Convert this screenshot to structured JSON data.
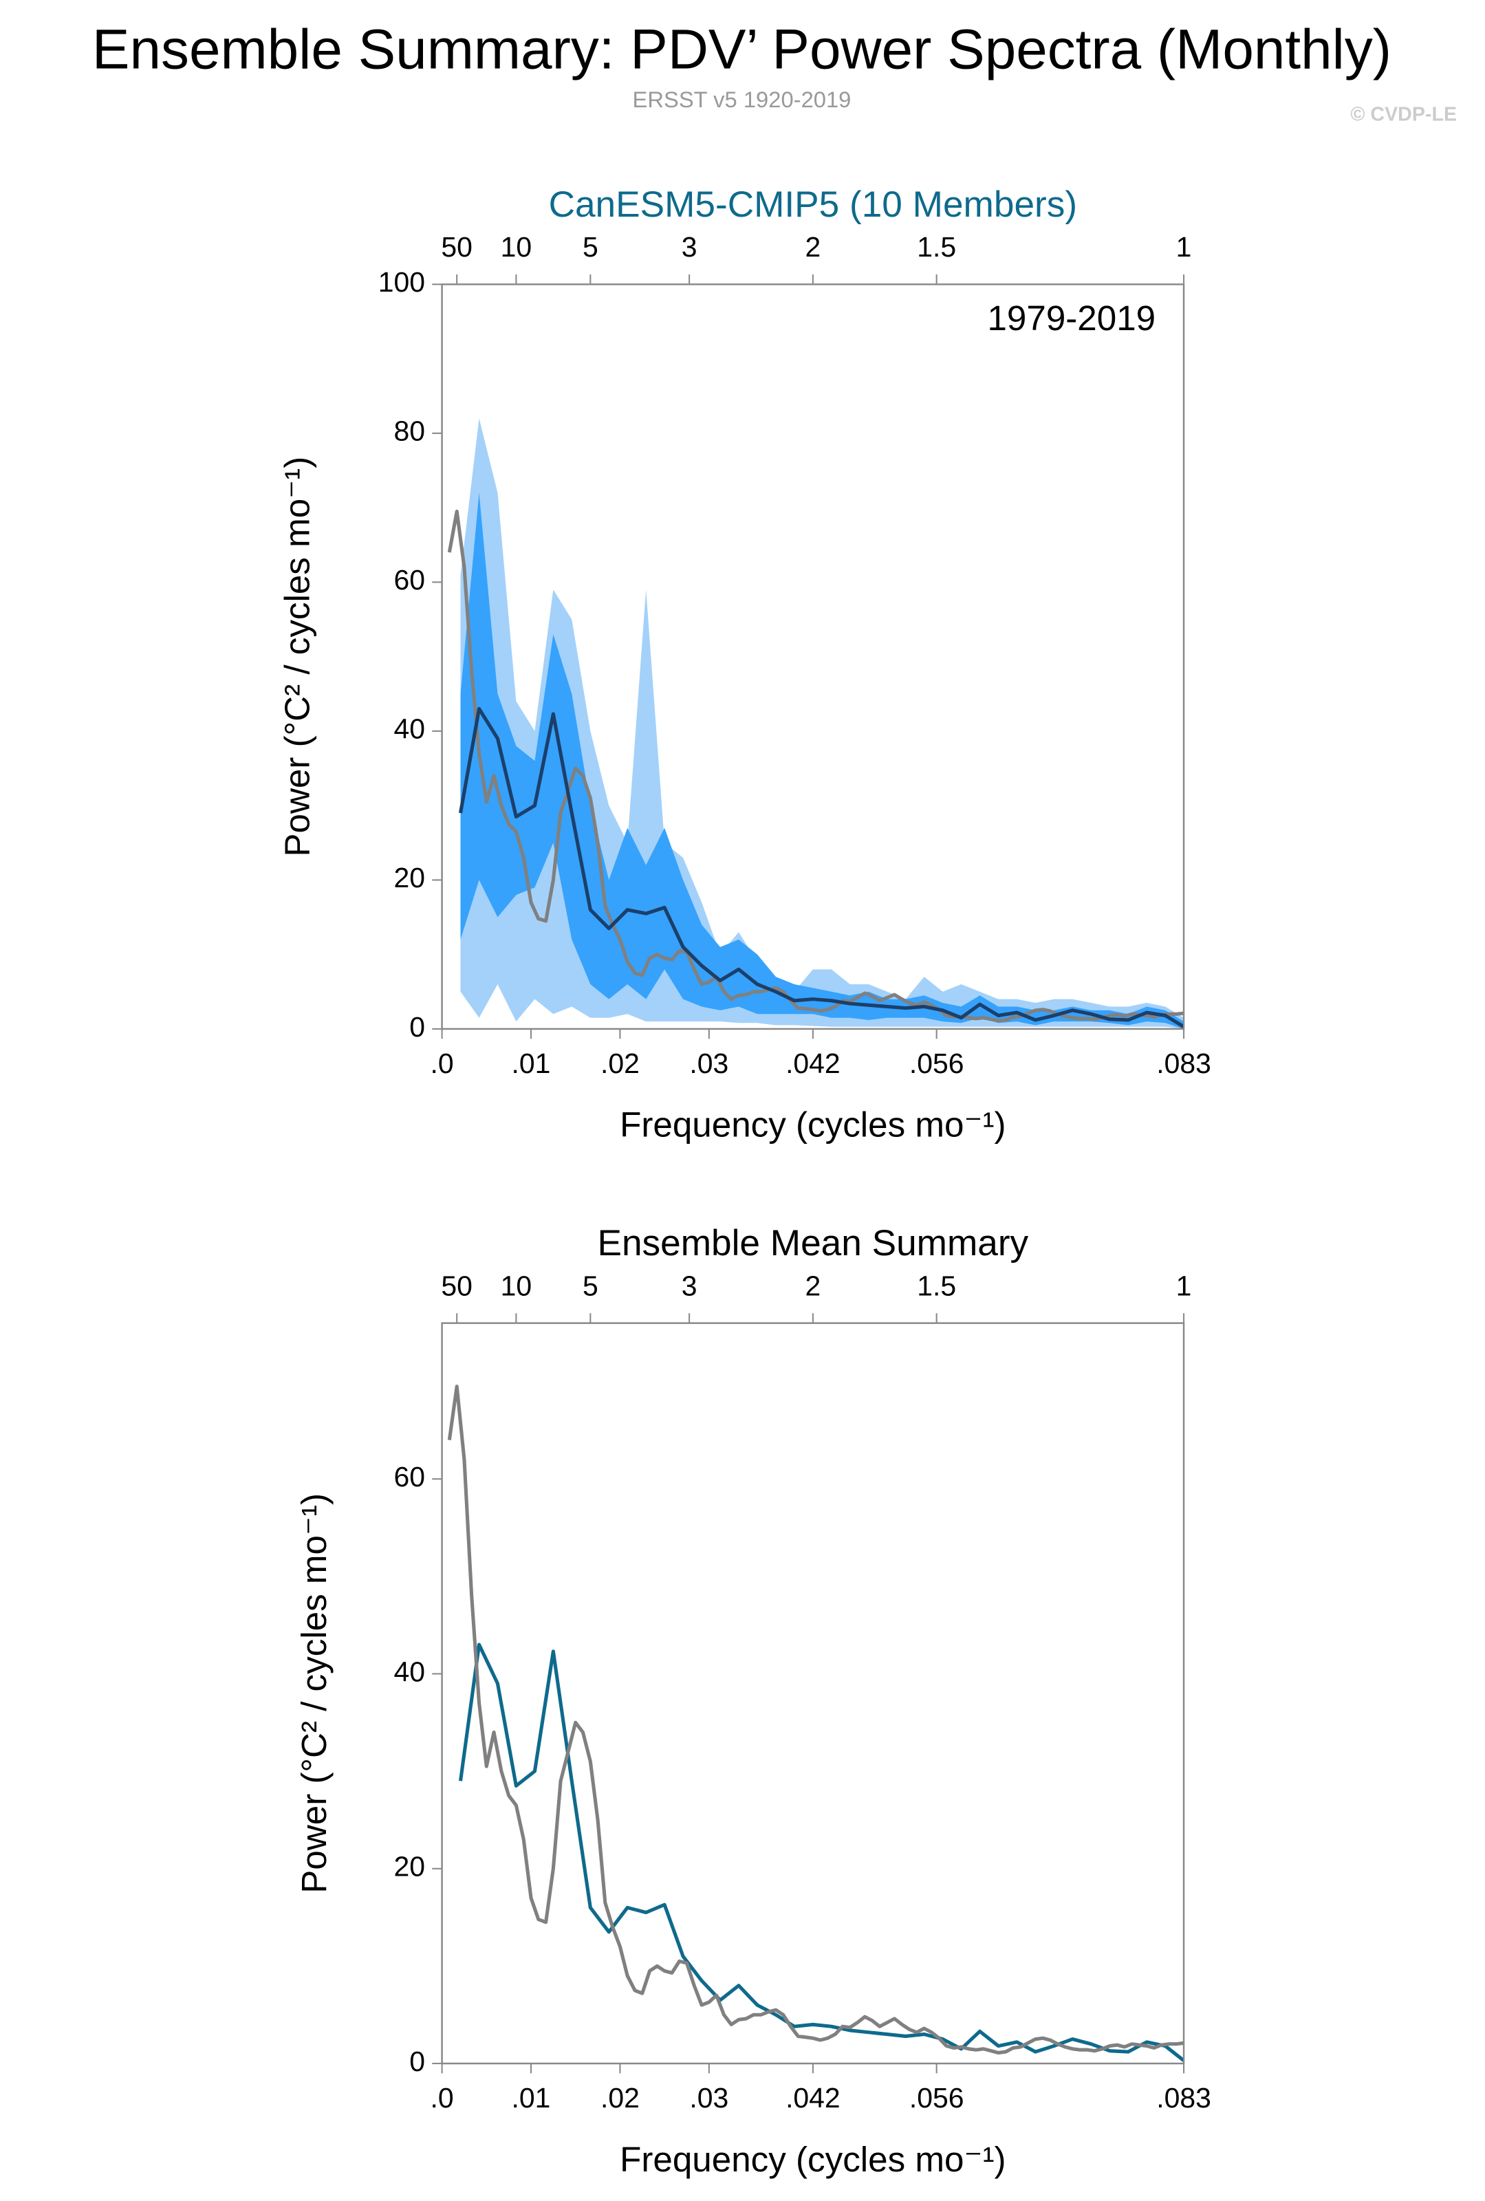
{
  "header": {
    "title": "Ensemble Summary: PDV’ Power Spectra (Monthly)",
    "subtitle": "ERSST v5 1920-2019",
    "credit": "© CVDP-LE"
  },
  "chart_data": [
    {
      "type": "line",
      "title": "CanESM5-CMIP5 (10 Members)",
      "title_color": "#0e6a8c",
      "annotation": "1979-2019",
      "xlabel": "Frequency (cycles mo⁻¹)",
      "ylabel": "Power (°C² / cycles mo⁻¹)",
      "xlim": [
        0,
        0.08333
      ],
      "ylim": [
        0,
        100
      ],
      "xticks": [
        {
          "value": 0,
          "label": ".0"
        },
        {
          "value": 0.01,
          "label": ".01"
        },
        {
          "value": 0.02,
          "label": ".02"
        },
        {
          "value": 0.03,
          "label": ".03"
        },
        {
          "value": 0.04167,
          "label": ".042"
        },
        {
          "value": 0.05556,
          "label": ".056"
        },
        {
          "value": 0.08333,
          "label": ".083"
        }
      ],
      "x2ticks": [
        {
          "value": 0.00167,
          "label": "50"
        },
        {
          "value": 0.00833,
          "label": "10"
        },
        {
          "value": 0.01667,
          "label": "5"
        },
        {
          "value": 0.02778,
          "label": "3"
        },
        {
          "value": 0.04167,
          "label": "2"
        },
        {
          "value": 0.05556,
          "label": "1.5"
        },
        {
          "value": 0.08333,
          "label": "1"
        }
      ],
      "yticks": [
        0,
        20,
        40,
        60,
        80,
        100
      ],
      "bands": [
        {
          "color": "#a3d1fa",
          "x": [
            0.00208,
            0.00417,
            0.00625,
            0.00833,
            0.01042,
            0.0125,
            0.01458,
            0.01667,
            0.01875,
            0.02083,
            0.02292,
            0.025,
            0.02708,
            0.02917,
            0.03125,
            0.03333,
            0.03542,
            0.0375,
            0.03958,
            0.04167,
            0.04375,
            0.04583,
            0.04792,
            0.05,
            0.05208,
            0.05417,
            0.05625,
            0.05833,
            0.06042,
            0.0625,
            0.06458,
            0.06667,
            0.06875,
            0.07083,
            0.07292,
            0.075,
            0.07708,
            0.07917,
            0.08125,
            0.08333
          ],
          "lower": [
            5,
            1.5,
            6,
            1,
            4,
            2,
            3,
            1.5,
            1.5,
            2,
            1,
            1,
            1,
            1,
            1,
            0.8,
            0.8,
            0.5,
            0.5,
            0.4,
            0.3,
            0.3,
            0.3,
            0.3,
            0.3,
            0.3,
            0.3,
            0.3,
            0.3,
            0.3,
            0.3,
            0.3,
            0.3,
            0.3,
            0.3,
            0.3,
            0.3,
            0.3,
            0.3,
            0
          ],
          "upper": [
            61,
            82,
            72,
            44,
            40,
            59,
            55,
            40,
            30,
            25,
            59,
            25,
            23,
            17,
            10,
            13,
            9,
            6,
            5,
            8,
            8,
            6,
            6,
            5,
            4,
            7,
            5,
            6,
            5,
            4,
            4,
            3.5,
            4,
            4,
            3.5,
            3,
            3,
            3.5,
            3,
            1.5
          ]
        },
        {
          "color": "#36a2fb",
          "x": [
            0.00208,
            0.00417,
            0.00625,
            0.00833,
            0.01042,
            0.0125,
            0.01458,
            0.01667,
            0.01875,
            0.02083,
            0.02292,
            0.025,
            0.02708,
            0.02917,
            0.03125,
            0.03333,
            0.03542,
            0.0375,
            0.03958,
            0.04167,
            0.04375,
            0.04583,
            0.04792,
            0.05,
            0.05208,
            0.05417,
            0.05625,
            0.05833,
            0.06042,
            0.0625,
            0.06458,
            0.06667,
            0.06875,
            0.07083,
            0.07292,
            0.075,
            0.07708,
            0.07917,
            0.08125,
            0.08333
          ],
          "lower": [
            12,
            20,
            15,
            18,
            19,
            25,
            12,
            6,
            4,
            6,
            4,
            8,
            4,
            3,
            2.5,
            3,
            2,
            2,
            2,
            2,
            1.5,
            1.5,
            1.2,
            1.5,
            1.5,
            1.5,
            1,
            0.8,
            1.5,
            0.8,
            1,
            0.5,
            1,
            1,
            1,
            0.8,
            0.5,
            1,
            0.8,
            0
          ],
          "upper": [
            45,
            72,
            45,
            38,
            36,
            53,
            45,
            30,
            20,
            27,
            22,
            27,
            20,
            14,
            11,
            12,
            10,
            7,
            6,
            5.5,
            5,
            4.5,
            5,
            4,
            4,
            4.5,
            3.5,
            3,
            4.5,
            3,
            3,
            2.5,
            2.5,
            3,
            2.5,
            2.5,
            2,
            3,
            2.5,
            1
          ]
        }
      ],
      "series": [
        {
          "color": "#808080",
          "x": [
            0.00083,
            0.00167,
            0.0025,
            0.00333,
            0.00417,
            0.005,
            0.00583,
            0.00667,
            0.0075,
            0.00833,
            0.00917,
            0.01,
            0.01083,
            0.01167,
            0.0125,
            0.01333,
            0.01417,
            0.015,
            0.01583,
            0.01667,
            0.0175,
            0.01833,
            0.01917,
            0.02,
            0.02083,
            0.02167,
            0.0225,
            0.02333,
            0.02417,
            0.025,
            0.02583,
            0.02667,
            0.0275,
            0.02833,
            0.02917,
            0.03,
            0.03083,
            0.03167,
            0.0325,
            0.03333,
            0.03417,
            0.035,
            0.03583,
            0.03667,
            0.0375,
            0.03833,
            0.03917,
            0.04,
            0.04083,
            0.04167,
            0.0425,
            0.04333,
            0.04417,
            0.045,
            0.04583,
            0.04667,
            0.0475,
            0.04833,
            0.04917,
            0.05,
            0.05083,
            0.05167,
            0.0525,
            0.05333,
            0.05417,
            0.055,
            0.05583,
            0.05667,
            0.0575,
            0.05833,
            0.05917,
            0.06,
            0.06083,
            0.06167,
            0.0625,
            0.06333,
            0.06417,
            0.065,
            0.06583,
            0.06667,
            0.0675,
            0.06833,
            0.06917,
            0.07,
            0.07083,
            0.07167,
            0.0725,
            0.07333,
            0.07417,
            0.075,
            0.07583,
            0.07667,
            0.0775,
            0.07833,
            0.07917,
            0.08,
            0.08083,
            0.08167,
            0.0825,
            0.08333
          ],
          "values": [
            64,
            69.5,
            62,
            48,
            37,
            30.5,
            34,
            30,
            27.5,
            26.5,
            23,
            17,
            14.8,
            14.5,
            20,
            29,
            32,
            35,
            34,
            31,
            25,
            16.5,
            14,
            12,
            9,
            7.5,
            7.2,
            9.5,
            10,
            9.5,
            9.3,
            10.5,
            10.3,
            8,
            6,
            6.3,
            7,
            5,
            4,
            4.5,
            4.6,
            5,
            5,
            5.3,
            5.5,
            5,
            3.8,
            2.8,
            2.7,
            2.6,
            2.4,
            2.6,
            3,
            3.8,
            3.7,
            4.2,
            4.8,
            4.4,
            3.8,
            4.2,
            4.6,
            4,
            3.5,
            3.2,
            3.6,
            3.2,
            2.6,
            1.8,
            1.6,
            1.7,
            1.5,
            1.4,
            1.5,
            1.3,
            1.1,
            1.2,
            1.6,
            1.7,
            2.1,
            2.5,
            2.6,
            2.4,
            2,
            1.7,
            1.5,
            1.4,
            1.4,
            1.3,
            1.5,
            1.8,
            1.9,
            1.7,
            2,
            1.9,
            1.8,
            1.6,
            1.9,
            2,
            2,
            2.1
          ]
        },
        {
          "color": "#1b3f6b",
          "x": [
            0.00208,
            0.00417,
            0.00625,
            0.00833,
            0.01042,
            0.0125,
            0.01458,
            0.01667,
            0.01875,
            0.02083,
            0.02292,
            0.025,
            0.02708,
            0.02917,
            0.03125,
            0.03333,
            0.03542,
            0.0375,
            0.03958,
            0.04167,
            0.04375,
            0.04583,
            0.04792,
            0.05,
            0.05208,
            0.05417,
            0.05625,
            0.05833,
            0.06042,
            0.0625,
            0.06458,
            0.06667,
            0.06875,
            0.07083,
            0.07292,
            0.075,
            0.07708,
            0.07917,
            0.08125,
            0.08333
          ],
          "values": [
            29,
            43,
            39,
            28.5,
            30,
            42.3,
            29,
            16,
            13.5,
            16,
            15.5,
            16.3,
            11,
            8.5,
            6.5,
            8,
            6,
            5,
            3.8,
            4,
            3.8,
            3.4,
            3.2,
            3,
            2.8,
            3,
            2.5,
            1.5,
            3.3,
            1.8,
            2.2,
            1.2,
            1.8,
            2.5,
            2,
            1.3,
            1.2,
            2.2,
            1.8,
            0.3
          ]
        }
      ]
    },
    {
      "type": "line",
      "title": "Ensemble Mean Summary",
      "title_color": "#000000",
      "xlabel": "Frequency (cycles mo⁻¹)",
      "ylabel": "Power (°C² / cycles mo⁻¹)",
      "xlim": [
        0,
        0.08333
      ],
      "ylim": [
        0,
        76
      ],
      "xticks": [
        {
          "value": 0,
          "label": ".0"
        },
        {
          "value": 0.01,
          "label": ".01"
        },
        {
          "value": 0.02,
          "label": ".02"
        },
        {
          "value": 0.03,
          "label": ".03"
        },
        {
          "value": 0.04167,
          "label": ".042"
        },
        {
          "value": 0.05556,
          "label": ".056"
        },
        {
          "value": 0.08333,
          "label": ".083"
        }
      ],
      "x2ticks": [
        {
          "value": 0.00167,
          "label": "50"
        },
        {
          "value": 0.00833,
          "label": "10"
        },
        {
          "value": 0.01667,
          "label": "5"
        },
        {
          "value": 0.02778,
          "label": "3"
        },
        {
          "value": 0.04167,
          "label": "2"
        },
        {
          "value": 0.05556,
          "label": "1.5"
        },
        {
          "value": 0.08333,
          "label": "1"
        }
      ],
      "yticks": [
        0,
        20,
        40,
        60
      ],
      "series": [
        {
          "color": "#0e6a8c",
          "x": [
            0.00208,
            0.00417,
            0.00625,
            0.00833,
            0.01042,
            0.0125,
            0.01458,
            0.01667,
            0.01875,
            0.02083,
            0.02292,
            0.025,
            0.02708,
            0.02917,
            0.03125,
            0.03333,
            0.03542,
            0.0375,
            0.03958,
            0.04167,
            0.04375,
            0.04583,
            0.04792,
            0.05,
            0.05208,
            0.05417,
            0.05625,
            0.05833,
            0.06042,
            0.0625,
            0.06458,
            0.06667,
            0.06875,
            0.07083,
            0.07292,
            0.075,
            0.07708,
            0.07917,
            0.08125,
            0.08333
          ],
          "values": [
            29,
            43,
            39,
            28.5,
            30,
            42.3,
            29,
            16,
            13.5,
            16,
            15.5,
            16.3,
            11,
            8.5,
            6.5,
            8,
            6,
            5,
            3.8,
            4,
            3.8,
            3.4,
            3.2,
            3,
            2.8,
            3,
            2.5,
            1.5,
            3.3,
            1.8,
            2.2,
            1.2,
            1.8,
            2.5,
            2,
            1.3,
            1.2,
            2.2,
            1.8,
            0.3
          ]
        },
        {
          "color": "#808080",
          "x": [
            0.00083,
            0.00167,
            0.0025,
            0.00333,
            0.00417,
            0.005,
            0.00583,
            0.00667,
            0.0075,
            0.00833,
            0.00917,
            0.01,
            0.01083,
            0.01167,
            0.0125,
            0.01333,
            0.01417,
            0.015,
            0.01583,
            0.01667,
            0.0175,
            0.01833,
            0.01917,
            0.02,
            0.02083,
            0.02167,
            0.0225,
            0.02333,
            0.02417,
            0.025,
            0.02583,
            0.02667,
            0.0275,
            0.02833,
            0.02917,
            0.03,
            0.03083,
            0.03167,
            0.0325,
            0.03333,
            0.03417,
            0.035,
            0.03583,
            0.03667,
            0.0375,
            0.03833,
            0.03917,
            0.04,
            0.04083,
            0.04167,
            0.0425,
            0.04333,
            0.04417,
            0.045,
            0.04583,
            0.04667,
            0.0475,
            0.04833,
            0.04917,
            0.05,
            0.05083,
            0.05167,
            0.0525,
            0.05333,
            0.05417,
            0.055,
            0.05583,
            0.05667,
            0.0575,
            0.05833,
            0.05917,
            0.06,
            0.06083,
            0.06167,
            0.0625,
            0.06333,
            0.06417,
            0.065,
            0.06583,
            0.06667,
            0.0675,
            0.06833,
            0.06917,
            0.07,
            0.07083,
            0.07167,
            0.0725,
            0.07333,
            0.07417,
            0.075,
            0.07583,
            0.07667,
            0.0775,
            0.07833,
            0.07917,
            0.08,
            0.08083,
            0.08167,
            0.0825,
            0.08333
          ],
          "values": [
            64,
            69.5,
            62,
            48,
            37,
            30.5,
            34,
            30,
            27.5,
            26.5,
            23,
            17,
            14.8,
            14.5,
            20,
            29,
            32,
            35,
            34,
            31,
            25,
            16.5,
            14,
            12,
            9,
            7.5,
            7.2,
            9.5,
            10,
            9.5,
            9.3,
            10.5,
            10.3,
            8,
            6,
            6.3,
            7,
            5,
            4,
            4.5,
            4.6,
            5,
            5,
            5.3,
            5.5,
            5,
            3.8,
            2.8,
            2.7,
            2.6,
            2.4,
            2.6,
            3,
            3.8,
            3.7,
            4.2,
            4.8,
            4.4,
            3.8,
            4.2,
            4.6,
            4,
            3.5,
            3.2,
            3.6,
            3.2,
            2.6,
            1.8,
            1.6,
            1.7,
            1.5,
            1.4,
            1.5,
            1.3,
            1.1,
            1.2,
            1.6,
            1.7,
            2.1,
            2.5,
            2.6,
            2.4,
            2,
            1.7,
            1.5,
            1.4,
            1.4,
            1.3,
            1.5,
            1.8,
            1.9,
            1.7,
            2,
            1.9,
            1.8,
            1.6,
            1.9,
            2,
            2,
            2.1
          ]
        }
      ]
    }
  ]
}
